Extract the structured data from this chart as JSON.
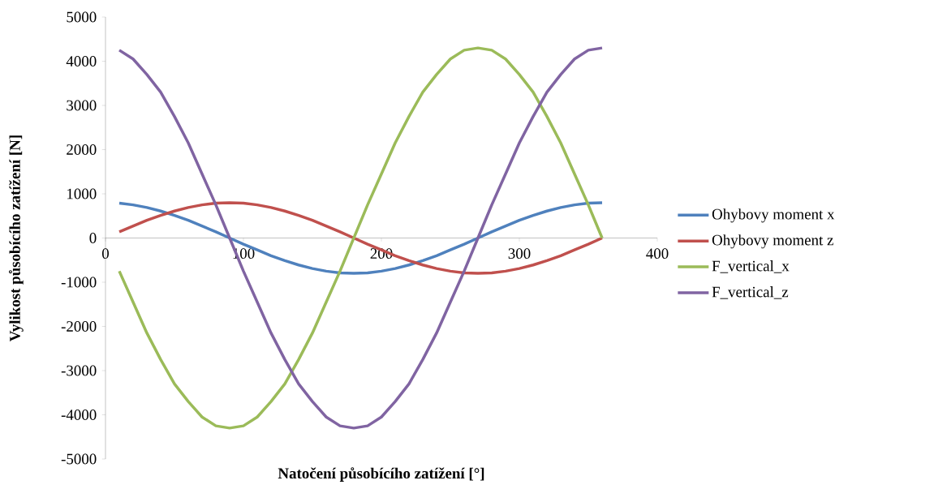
{
  "chart_data": {
    "type": "line",
    "xlabel": "Natočení působícího zatížení [°]",
    "ylabel": "Vylikost působícího zatížení [N]",
    "x": [
      10,
      20,
      30,
      40,
      50,
      60,
      70,
      80,
      90,
      100,
      110,
      120,
      130,
      140,
      150,
      160,
      170,
      180,
      190,
      200,
      210,
      220,
      230,
      240,
      250,
      260,
      270,
      280,
      290,
      300,
      310,
      320,
      330,
      340,
      350,
      360
    ],
    "series": [
      {
        "name": "Ohybovy moment x",
        "color": "#4f81bd",
        "values": [
          790,
          750,
          690,
          610,
          510,
          400,
          270,
          140,
          0,
          -140,
          -270,
          -400,
          -510,
          -610,
          -690,
          -750,
          -790,
          -800,
          -790,
          -750,
          -690,
          -610,
          -510,
          -400,
          -270,
          -140,
          0,
          140,
          270,
          400,
          510,
          610,
          690,
          750,
          790,
          800
        ]
      },
      {
        "name": "Ohybovy moment z",
        "color": "#c0504d",
        "values": [
          140,
          270,
          400,
          510,
          610,
          690,
          750,
          790,
          800,
          790,
          750,
          690,
          610,
          510,
          400,
          270,
          140,
          0,
          -140,
          -270,
          -400,
          -510,
          -610,
          -690,
          -750,
          -790,
          -800,
          -790,
          -750,
          -690,
          -610,
          -510,
          -400,
          -270,
          -140,
          0
        ]
      },
      {
        "name": "F_vertical_x",
        "color": "#9bbb59",
        "values": [
          -750,
          -1450,
          -2150,
          -2750,
          -3300,
          -3700,
          -4050,
          -4250,
          -4300,
          -4250,
          -4050,
          -3700,
          -3300,
          -2750,
          -2150,
          -1450,
          -750,
          0,
          750,
          1450,
          2150,
          2750,
          3300,
          3700,
          4050,
          4250,
          4300,
          4250,
          4050,
          3700,
          3300,
          2750,
          2150,
          1450,
          750,
          0
        ]
      },
      {
        "name": "F_vertical_z",
        "color": "#8064a2",
        "values": [
          4250,
          4050,
          3700,
          3300,
          2750,
          2150,
          1450,
          750,
          0,
          -750,
          -1450,
          -2150,
          -2750,
          -3300,
          -3700,
          -4050,
          -4250,
          -4300,
          -4250,
          -4050,
          -3700,
          -3300,
          -2750,
          -2150,
          -1450,
          -750,
          0,
          750,
          1450,
          2150,
          2750,
          3300,
          3700,
          4050,
          4250,
          4300
        ]
      }
    ],
    "xlim": [
      0,
      400
    ],
    "ylim": [
      -5000,
      5000
    ],
    "xticks": [
      0,
      100,
      200,
      300,
      400
    ],
    "yticks": [
      -5000,
      -4000,
      -3000,
      -2000,
      -1000,
      0,
      1000,
      2000,
      3000,
      4000,
      5000
    ],
    "legend": "right"
  }
}
